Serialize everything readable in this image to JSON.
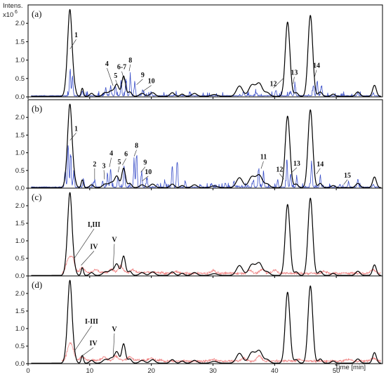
{
  "chart_data": {
    "type": "line",
    "ylabel": "Intens.",
    "yexponent": "x10",
    "yexponent_power": "6",
    "xlabel": "Time [min]",
    "xlim": [
      0,
      57.5
    ],
    "ylim": [
      0,
      2.5
    ],
    "xticks": [
      "0",
      "10",
      "20",
      "30",
      "40",
      "50"
    ],
    "xtick_values": [
      0,
      10,
      20,
      30,
      40,
      50
    ],
    "yticks": [
      "0.0",
      "0.5",
      "1.0",
      "1.5",
      "2.0"
    ],
    "ytick_values": [
      0,
      0.5,
      1.0,
      1.5,
      2.0
    ],
    "colors": {
      "reference": "#000000",
      "blue_trace": "#3a4fc8",
      "red_trace": "#f08a8a"
    },
    "panels": [
      {
        "label": "(a)",
        "overlay": "blue",
        "annotations": [
          {
            "text": "1",
            "x": 7.8,
            "y": 1.6,
            "tx": 6.8,
            "ty": 1.3
          },
          {
            "text": "4",
            "x": 12.8,
            "y": 0.82,
            "tx": 13.8,
            "ty": 0.3
          },
          {
            "text": "5",
            "x": 14.2,
            "y": 0.5,
            "tx": 14.6,
            "ty": 0.28
          },
          {
            "text": "6-7",
            "x": 15.2,
            "y": 0.73,
            "tx": 15.6,
            "ty": 0.45
          },
          {
            "text": "8",
            "x": 16.6,
            "y": 0.92,
            "tx": 16.4,
            "ty": 0.7
          },
          {
            "text": "9",
            "x": 18.6,
            "y": 0.52,
            "tx": 17.6,
            "ty": 0.33
          },
          {
            "text": "10",
            "x": 20.0,
            "y": 0.35,
            "tx": 18.6,
            "ty": 0.15
          },
          {
            "text": "12",
            "x": 39.8,
            "y": 0.28,
            "tx": 41.4,
            "ty": 0.5
          },
          {
            "text": "13",
            "x": 43.2,
            "y": 0.58,
            "tx": 43.0,
            "ty": 0.35
          },
          {
            "text": "14",
            "x": 46.8,
            "y": 0.77,
            "tx": 46.5,
            "ty": 0.55
          }
        ]
      },
      {
        "label": "(b)",
        "overlay": "blue",
        "annotations": [
          {
            "text": "1",
            "x": 7.8,
            "y": 1.6,
            "tx": 6.8,
            "ty": 1.35
          },
          {
            "text": "2",
            "x": 10.8,
            "y": 0.6,
            "tx": 10.8,
            "ty": 0.25
          },
          {
            "text": "3",
            "x": 12.3,
            "y": 0.55,
            "tx": 12.4,
            "ty": 0.25
          },
          {
            "text": "4",
            "x": 13.5,
            "y": 0.9,
            "tx": 13.2,
            "ty": 0.6
          },
          {
            "text": "5",
            "x": 14.8,
            "y": 0.65,
            "tx": 14.6,
            "ty": 0.45
          },
          {
            "text": "6",
            "x": 15.9,
            "y": 0.88,
            "tx": 15.3,
            "ty": 0.65
          },
          {
            "text": "8",
            "x": 17.6,
            "y": 1.12,
            "tx": 17.2,
            "ty": 0.9
          },
          {
            "text": "9",
            "x": 19.0,
            "y": 0.64,
            "tx": 18.3,
            "ty": 0.45
          },
          {
            "text": "10",
            "x": 19.5,
            "y": 0.38,
            "tx": 18.5,
            "ty": 0.2
          },
          {
            "text": "11",
            "x": 38.2,
            "y": 0.8,
            "tx": 37.8,
            "ty": 0.55
          },
          {
            "text": "12",
            "x": 40.8,
            "y": 0.45,
            "tx": 41.5,
            "ty": 0.25
          },
          {
            "text": "13",
            "x": 43.6,
            "y": 0.62,
            "tx": 42.8,
            "ty": 0.45
          },
          {
            "text": "14",
            "x": 47.4,
            "y": 0.6,
            "tx": 46.8,
            "ty": 0.4
          },
          {
            "text": "15",
            "x": 51.8,
            "y": 0.28,
            "tx": 51.2,
            "ty": 0.1
          }
        ]
      },
      {
        "label": "(c)",
        "overlay": "red",
        "annotations": [
          {
            "text": "I,III",
            "x": 10.7,
            "y": 1.38,
            "tx": 7.5,
            "ty": 0.5
          },
          {
            "text": "IV",
            "x": 10.7,
            "y": 0.75,
            "tx": 8.6,
            "ty": 0.3
          },
          {
            "text": "V",
            "x": 14.0,
            "y": 0.95,
            "tx": 13.8,
            "ty": 0.2
          }
        ]
      },
      {
        "label": "(d)",
        "overlay": "red",
        "annotations": [
          {
            "text": "I-III",
            "x": 10.3,
            "y": 1.12,
            "tx": 7.5,
            "ty": 0.35
          },
          {
            "text": "IV",
            "x": 10.6,
            "y": 0.5,
            "tx": 8.6,
            "ty": 0.2
          },
          {
            "text": "V",
            "x": 14.0,
            "y": 0.9,
            "tx": 13.8,
            "ty": 0.2
          }
        ]
      }
    ],
    "reference_peaks": [
      {
        "t": 6.8,
        "h": 2.22,
        "w": 0.32
      },
      {
        "t": 6.3,
        "h": 0.4,
        "w": 0.3
      },
      {
        "t": 7.4,
        "h": 0.3,
        "w": 0.3
      },
      {
        "t": 8.8,
        "h": 0.22,
        "w": 0.18
      },
      {
        "t": 10.3,
        "h": 0.08,
        "w": 0.3
      },
      {
        "t": 12.5,
        "h": 0.1,
        "w": 0.4
      },
      {
        "t": 13.5,
        "h": 0.14,
        "w": 0.4
      },
      {
        "t": 14.4,
        "h": 0.32,
        "w": 0.35
      },
      {
        "t": 15.5,
        "h": 0.55,
        "w": 0.3
      },
      {
        "t": 16.5,
        "h": 0.12,
        "w": 0.3
      },
      {
        "t": 18.5,
        "h": 0.08,
        "w": 0.4
      },
      {
        "t": 20.2,
        "h": 0.1,
        "w": 0.4
      },
      {
        "t": 23.4,
        "h": 0.1,
        "w": 0.35
      },
      {
        "t": 25.0,
        "h": 0.06,
        "w": 0.3
      },
      {
        "t": 27.0,
        "h": 0.08,
        "w": 0.4
      },
      {
        "t": 30.2,
        "h": 0.05,
        "w": 0.5
      },
      {
        "t": 34.3,
        "h": 0.28,
        "w": 0.5
      },
      {
        "t": 36.3,
        "h": 0.3,
        "w": 0.5
      },
      {
        "t": 37.5,
        "h": 0.35,
        "w": 0.5
      },
      {
        "t": 38.8,
        "h": 0.1,
        "w": 0.4
      },
      {
        "t": 42.1,
        "h": 2.02,
        "w": 0.38
      },
      {
        "t": 43.5,
        "h": 0.1,
        "w": 0.3
      },
      {
        "t": 45.8,
        "h": 2.2,
        "w": 0.38
      },
      {
        "t": 47.4,
        "h": 0.12,
        "w": 0.3
      },
      {
        "t": 49.5,
        "h": 0.06,
        "w": 0.3
      },
      {
        "t": 53.5,
        "h": 0.12,
        "w": 0.35
      },
      {
        "t": 56.2,
        "h": 0.3,
        "w": 0.3
      }
    ]
  }
}
